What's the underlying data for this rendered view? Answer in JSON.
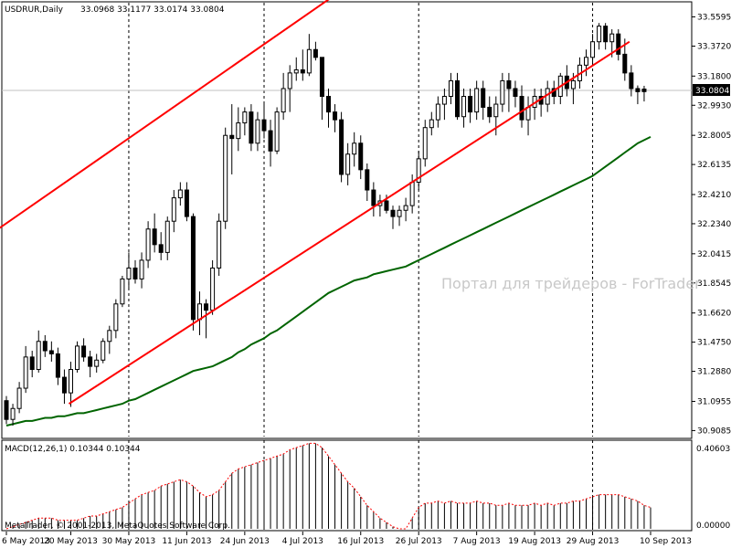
{
  "header": {
    "symbol_label": "USDRUR,Daily",
    "ohlc": "33.0968 33.1177 33.0174 33.0804"
  },
  "current_price": "33.0804",
  "watermark": "Портал для трейдеров - ForTrader",
  "indicator": {
    "label": "MACD(12,26,1) 0.10344 0.10344",
    "max_label": "0.40603",
    "min_label": "0.00000"
  },
  "copyright": "MetaTrader, © 2001-2013, MetaQuotes Software Corp.",
  "colors": {
    "background": "#ffffff",
    "grid": "#000000",
    "trend_lines": "#ff0000",
    "moving_average": "#006400",
    "price_line": "#c0c0c0",
    "price_tag_bg": "#000000",
    "macd_bars": "#000000",
    "macd_signal": "#ff0000"
  },
  "chart_data": {
    "type": "candlestick",
    "symbol": "USDRUR",
    "timeframe": "Daily",
    "y_ticks": [
      "33.5595",
      "33.3720",
      "33.1800",
      "32.9930",
      "32.8005",
      "32.6135",
      "32.4210",
      "32.2340",
      "32.0415",
      "31.8545",
      "31.6620",
      "31.4750",
      "31.2880",
      "31.0955",
      "30.9085"
    ],
    "ylim": [
      30.87,
      33.65
    ],
    "x_ticks": [
      "6 May 2013",
      "20 May 2013",
      "30 May 2013",
      "11 Jun 2013",
      "24 Jun 2013",
      "4 Jul 2013",
      "16 Jul 2013",
      "26 Jul 2013",
      "7 Aug 2013",
      "19 Aug 2013",
      "29 Aug 2013",
      "10 Sep 2013"
    ],
    "x_tick_bars": [
      0,
      10,
      19,
      28,
      37,
      46,
      55,
      64,
      73,
      82,
      91,
      100
    ],
    "vlines_at_bars": [
      19,
      40,
      64,
      91
    ],
    "candles": [
      [
        31.1,
        31.13,
        30.95,
        30.98
      ],
      [
        30.98,
        31.08,
        30.94,
        31.05
      ],
      [
        31.05,
        31.22,
        31.02,
        31.18
      ],
      [
        31.18,
        31.45,
        31.15,
        31.38
      ],
      [
        31.38,
        31.42,
        31.25,
        31.3
      ],
      [
        31.3,
        31.55,
        31.28,
        31.48
      ],
      [
        31.48,
        31.52,
        31.38,
        31.42
      ],
      [
        31.42,
        31.48,
        31.35,
        31.4
      ],
      [
        31.4,
        31.44,
        31.2,
        31.25
      ],
      [
        31.25,
        31.3,
        31.08,
        31.15
      ],
      [
        31.15,
        31.35,
        31.06,
        31.3
      ],
      [
        31.3,
        31.48,
        31.28,
        31.45
      ],
      [
        31.45,
        31.5,
        31.35,
        31.38
      ],
      [
        31.38,
        31.42,
        31.25,
        31.32
      ],
      [
        31.32,
        31.4,
        31.28,
        31.36
      ],
      [
        31.36,
        31.5,
        31.34,
        31.48
      ],
      [
        31.48,
        31.58,
        31.4,
        31.55
      ],
      [
        31.55,
        31.75,
        31.5,
        31.72
      ],
      [
        31.72,
        31.9,
        31.7,
        31.88
      ],
      [
        31.88,
        32.05,
        31.82,
        31.95
      ],
      [
        31.95,
        32.0,
        31.85,
        31.88
      ],
      [
        31.88,
        32.05,
        31.82,
        32.0
      ],
      [
        32.0,
        32.25,
        31.95,
        32.2
      ],
      [
        32.2,
        32.3,
        32.05,
        32.1
      ],
      [
        32.1,
        32.18,
        32.0,
        32.05
      ],
      [
        32.05,
        32.28,
        32.0,
        32.25
      ],
      [
        32.25,
        32.45,
        32.18,
        32.4
      ],
      [
        32.4,
        32.5,
        32.35,
        32.45
      ],
      [
        32.45,
        32.5,
        32.25,
        32.28
      ],
      [
        32.28,
        32.3,
        31.55,
        31.62
      ],
      [
        31.62,
        31.8,
        31.52,
        31.72
      ],
      [
        31.72,
        31.75,
        31.5,
        31.68
      ],
      [
        31.68,
        32.0,
        31.65,
        31.95
      ],
      [
        31.95,
        32.3,
        31.9,
        32.25
      ],
      [
        32.25,
        32.85,
        32.2,
        32.8
      ],
      [
        32.8,
        33.0,
        32.55,
        32.78
      ],
      [
        32.78,
        32.98,
        32.7,
        32.88
      ],
      [
        32.88,
        32.98,
        32.8,
        32.95
      ],
      [
        32.95,
        33.0,
        32.7,
        32.75
      ],
      [
        32.75,
        32.95,
        32.7,
        32.9
      ],
      [
        32.9,
        33.0,
        32.78,
        32.83
      ],
      [
        32.83,
        32.9,
        32.6,
        32.7
      ],
      [
        32.7,
        32.98,
        32.68,
        32.95
      ],
      [
        32.95,
        33.2,
        32.9,
        33.1
      ],
      [
        33.1,
        33.25,
        32.95,
        33.2
      ],
      [
        33.2,
        33.3,
        33.15,
        33.22
      ],
      [
        33.22,
        33.35,
        33.15,
        33.2
      ],
      [
        33.2,
        33.45,
        33.18,
        33.35
      ],
      [
        33.35,
        33.4,
        33.28,
        33.3
      ],
      [
        33.3,
        33.28,
        32.9,
        33.05
      ],
      [
        33.05,
        33.1,
        32.85,
        32.95
      ],
      [
        32.95,
        33.0,
        32.82,
        32.9
      ],
      [
        32.9,
        32.95,
        32.5,
        32.55
      ],
      [
        32.55,
        32.75,
        32.48,
        32.68
      ],
      [
        32.68,
        32.82,
        32.6,
        32.75
      ],
      [
        32.75,
        32.8,
        32.52,
        32.58
      ],
      [
        32.58,
        32.62,
        32.38,
        32.45
      ],
      [
        32.45,
        32.5,
        32.28,
        32.35
      ],
      [
        32.35,
        32.42,
        32.28,
        32.38
      ],
      [
        32.38,
        32.42,
        32.3,
        32.32
      ],
      [
        32.32,
        32.35,
        32.2,
        32.28
      ],
      [
        32.28,
        32.35,
        32.22,
        32.32
      ],
      [
        32.32,
        32.4,
        32.25,
        32.35
      ],
      [
        32.35,
        32.55,
        32.3,
        32.5
      ],
      [
        32.5,
        32.7,
        32.45,
        32.65
      ],
      [
        32.65,
        32.9,
        32.6,
        32.85
      ],
      [
        32.85,
        32.95,
        32.8,
        32.9
      ],
      [
        32.9,
        33.05,
        32.85,
        33.0
      ],
      [
        33.0,
        33.1,
        32.9,
        33.05
      ],
      [
        33.05,
        33.2,
        33.0,
        33.15
      ],
      [
        33.15,
        33.2,
        32.9,
        32.92
      ],
      [
        32.92,
        33.1,
        32.85,
        33.05
      ],
      [
        33.05,
        33.1,
        32.88,
        32.95
      ],
      [
        32.95,
        33.15,
        32.9,
        33.1
      ],
      [
        33.1,
        33.15,
        32.9,
        32.98
      ],
      [
        32.98,
        33.05,
        32.88,
        32.92
      ],
      [
        32.92,
        33.05,
        32.8,
        33.0
      ],
      [
        33.0,
        33.2,
        32.95,
        33.15
      ],
      [
        33.15,
        33.2,
        32.95,
        33.1
      ],
      [
        33.1,
        33.15,
        32.98,
        33.05
      ],
      [
        33.05,
        33.12,
        32.85,
        32.9
      ],
      [
        32.9,
        33.05,
        32.8,
        32.98
      ],
      [
        32.98,
        33.1,
        32.9,
        33.05
      ],
      [
        33.05,
        33.1,
        32.92,
        33.0
      ],
      [
        33.0,
        33.15,
        32.95,
        33.1
      ],
      [
        33.1,
        33.15,
        33.0,
        33.05
      ],
      [
        33.05,
        33.2,
        33.0,
        33.18
      ],
      [
        33.18,
        33.25,
        33.05,
        33.1
      ],
      [
        33.1,
        33.2,
        33.0,
        33.15
      ],
      [
        33.15,
        33.3,
        33.1,
        33.25
      ],
      [
        33.25,
        33.35,
        33.18,
        33.3
      ],
      [
        33.3,
        33.45,
        33.25,
        33.4
      ],
      [
        33.4,
        33.52,
        33.35,
        33.5
      ],
      [
        33.5,
        33.52,
        33.35,
        33.4
      ],
      [
        33.4,
        33.48,
        33.3,
        33.45
      ],
      [
        33.45,
        33.48,
        33.28,
        33.32
      ],
      [
        33.32,
        33.42,
        33.15,
        33.2
      ],
      [
        33.2,
        33.25,
        33.05,
        33.1
      ],
      [
        33.1,
        33.12,
        33.0,
        33.08
      ],
      [
        33.0968,
        33.1177,
        33.0174,
        33.0804
      ]
    ],
    "moving_average": [
      30.94,
      30.95,
      30.96,
      30.97,
      30.97,
      30.98,
      30.99,
      30.99,
      31.0,
      31.0,
      31.01,
      31.02,
      31.02,
      31.03,
      31.04,
      31.05,
      31.06,
      31.07,
      31.08,
      31.1,
      31.11,
      31.13,
      31.15,
      31.17,
      31.19,
      31.21,
      31.23,
      31.25,
      31.27,
      31.29,
      31.3,
      31.31,
      31.32,
      31.34,
      31.36,
      31.38,
      31.41,
      31.43,
      31.46,
      31.48,
      31.5,
      31.53,
      31.55,
      31.58,
      31.61,
      31.64,
      31.67,
      31.7,
      31.73,
      31.76,
      31.79,
      31.81,
      31.83,
      31.85,
      31.87,
      31.88,
      31.89,
      31.91,
      31.92,
      31.93,
      31.94,
      31.95,
      31.96,
      31.98,
      32.0,
      32.02,
      32.04,
      32.06,
      32.08,
      32.1,
      32.12,
      32.14,
      32.16,
      32.18,
      32.2,
      32.22,
      32.24,
      32.26,
      32.28,
      32.3,
      32.32,
      32.34,
      32.36,
      32.38,
      32.4,
      32.42,
      32.44,
      32.46,
      32.48,
      32.5,
      32.52,
      32.54,
      32.57,
      32.6,
      32.63,
      32.66,
      32.69,
      32.72,
      32.75,
      32.77,
      32.79
    ],
    "trend_lines": [
      {
        "from": [
          -1,
          32.2
        ],
        "to": [
          52,
          33.72
        ]
      },
      {
        "from": [
          10,
          31.08
        ],
        "to": [
          97,
          33.4
        ]
      }
    ],
    "macd": [
      0.0,
      0.01,
      0.02,
      0.03,
      0.04,
      0.05,
      0.05,
      0.05,
      0.04,
      0.04,
      0.04,
      0.04,
      0.05,
      0.06,
      0.06,
      0.07,
      0.08,
      0.09,
      0.1,
      0.12,
      0.14,
      0.16,
      0.17,
      0.18,
      0.2,
      0.21,
      0.22,
      0.23,
      0.22,
      0.2,
      0.17,
      0.15,
      0.16,
      0.18,
      0.22,
      0.26,
      0.28,
      0.29,
      0.3,
      0.31,
      0.32,
      0.33,
      0.34,
      0.35,
      0.37,
      0.38,
      0.39,
      0.4,
      0.4,
      0.38,
      0.34,
      0.3,
      0.26,
      0.22,
      0.19,
      0.15,
      0.11,
      0.08,
      0.05,
      0.03,
      0.01,
      0.0,
      0.0,
      0.05,
      0.1,
      0.12,
      0.12,
      0.13,
      0.12,
      0.13,
      0.12,
      0.12,
      0.12,
      0.13,
      0.12,
      0.12,
      0.11,
      0.11,
      0.12,
      0.11,
      0.11,
      0.11,
      0.12,
      0.11,
      0.12,
      0.11,
      0.12,
      0.12,
      0.13,
      0.13,
      0.14,
      0.15,
      0.16,
      0.16,
      0.16,
      0.16,
      0.15,
      0.14,
      0.13,
      0.11,
      0.1
    ],
    "macd_ylim": [
      0,
      0.40603
    ]
  }
}
